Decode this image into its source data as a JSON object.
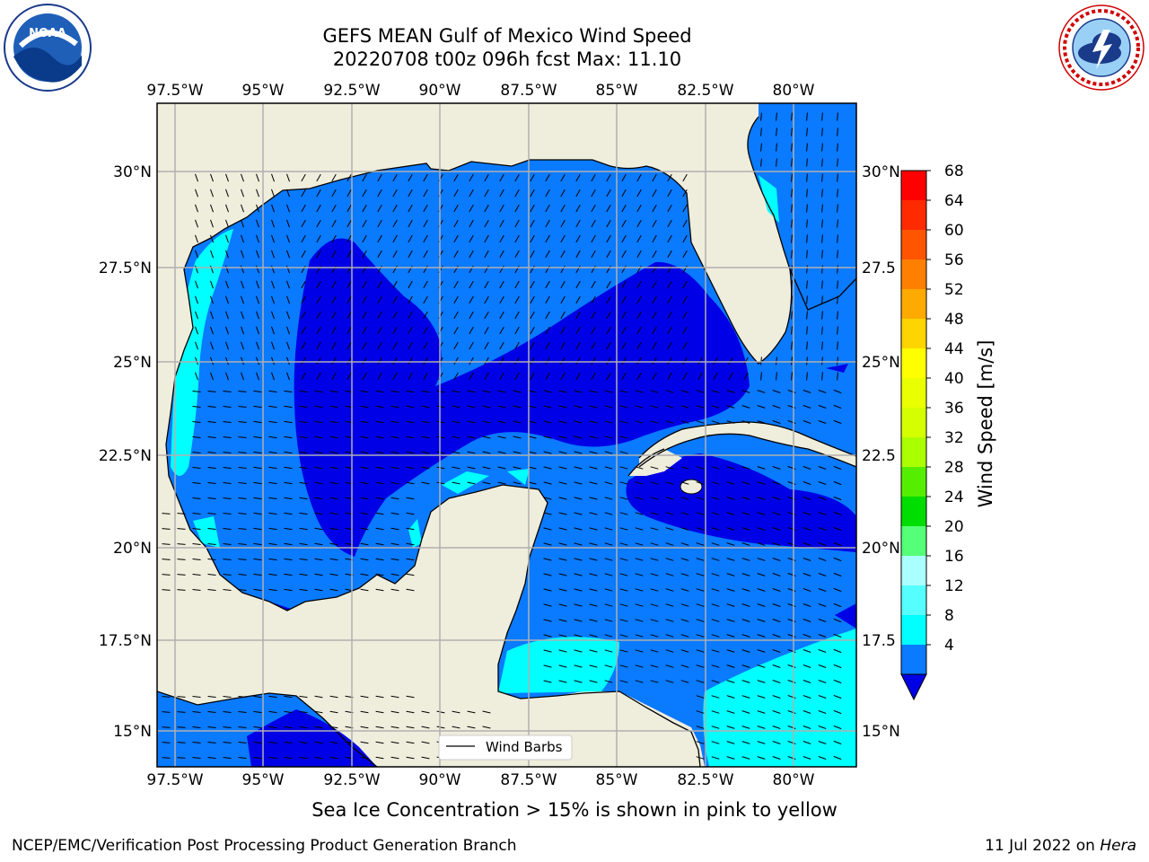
{
  "header": {
    "title_line1": "GEFS MEAN Gulf of Mexico Wind Speed",
    "title_line2": "20220708 t00z 096h fcst   Max: 11.10"
  },
  "logos": {
    "left": {
      "name": "noaa-logo",
      "text": "NOAA",
      "ring_text": "NATIONAL OCEANIC AND ATMOSPHERIC ADMINISTRATION · U.S. DEPARTMENT OF COMMERCE"
    },
    "right": {
      "name": "nws-logo",
      "ring_text": "NATIONAL WEATHER SERVICE"
    }
  },
  "map": {
    "lon_labels": [
      "97.5°W",
      "95°W",
      "92.5°W",
      "90°W",
      "87.5°W",
      "85°W",
      "82.5°W",
      "80°W"
    ],
    "lat_labels": [
      "30°N",
      "27.5°N",
      "25°N",
      "22.5°N",
      "20°N",
      "17.5°N",
      "15°N"
    ],
    "right_lat_labels": [
      "30°N",
      "27.5",
      "25°N",
      "22.5",
      "20°N",
      "17.5",
      "15°N"
    ],
    "legend_label": "Wind Barbs",
    "colors": {
      "land": "#efeddc",
      "speed_4_8": "#0a7aff",
      "speed_below_4": "#0000e6",
      "speed_8_12": "#00ffff",
      "grid": "#b0b0b0"
    }
  },
  "colorbar": {
    "label": "Wind Speed [m/s]",
    "ticks": [
      "68",
      "64",
      "60",
      "56",
      "52",
      "48",
      "44",
      "40",
      "36",
      "32",
      "28",
      "24",
      "20",
      "16",
      "12",
      "8",
      "4"
    ],
    "colors": [
      "#ff0000",
      "#ff2a00",
      "#ff5500",
      "#ff8000",
      "#ffaa00",
      "#ffd500",
      "#ffff00",
      "#eaff00",
      "#d5ff00",
      "#aaff00",
      "#55ee00",
      "#00dd00",
      "#55ff77",
      "#aaffff",
      "#55ffff",
      "#00ffff",
      "#0a7aff"
    ],
    "under_color": "#0000e6"
  },
  "caption": "Sea Ice Concentration > 15% is shown in pink to yellow",
  "footer": {
    "left": "NCEP/EMC/Verification Post Processing Product Generation Branch",
    "right_prefix": "11 Jul 2022 on ",
    "right_machine": "Hera"
  }
}
